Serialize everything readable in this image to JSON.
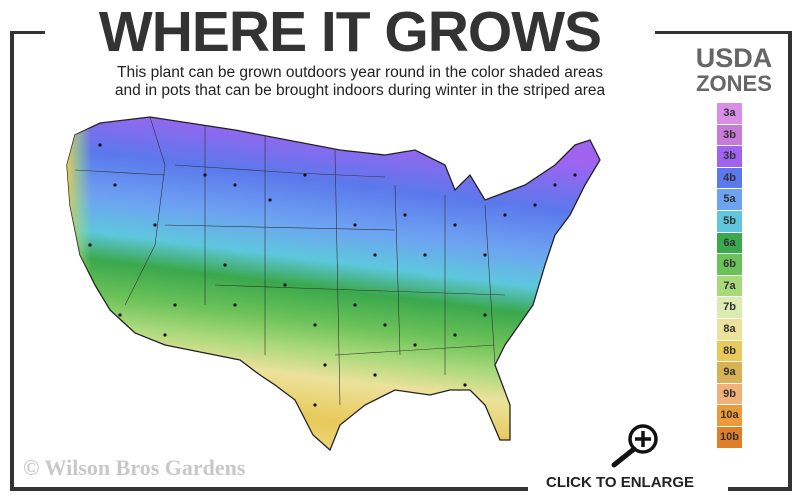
{
  "header": {
    "title": "WHERE IT GROWS",
    "subtitle_line1": "This plant can be grown outdoors year round in the color shaded areas",
    "subtitle_line2": "and in pots that can be brought indoors during winter in the striped area"
  },
  "legend": {
    "title_line1": "USDA",
    "title_line2": "ZONES",
    "zones": [
      {
        "label": "3a",
        "color": "#d98ee8"
      },
      {
        "label": "3b",
        "color": "#c77bd9"
      },
      {
        "label": "3b",
        "color": "#a063f0"
      },
      {
        "label": "4b",
        "color": "#5b78ec"
      },
      {
        "label": "5a",
        "color": "#6da3f2"
      },
      {
        "label": "5b",
        "color": "#5ec7dd"
      },
      {
        "label": "6a",
        "color": "#3aa84c"
      },
      {
        "label": "6b",
        "color": "#6cc259"
      },
      {
        "label": "7a",
        "color": "#a9d97a"
      },
      {
        "label": "7b",
        "color": "#dcebb2"
      },
      {
        "label": "8a",
        "color": "#ece29c"
      },
      {
        "label": "8b",
        "color": "#e8c95a"
      },
      {
        "label": "9a",
        "color": "#d6b255"
      },
      {
        "label": "9b",
        "color": "#f0b27a"
      },
      {
        "label": "10a",
        "color": "#ec9a3c"
      },
      {
        "label": "10b",
        "color": "#e07e2a"
      }
    ]
  },
  "footer": {
    "copyright": "© Wilson Bros Gardens",
    "enlarge_label": "CLICK TO ENLARGE",
    "enlarge_icon": "zoom-in-icon"
  }
}
